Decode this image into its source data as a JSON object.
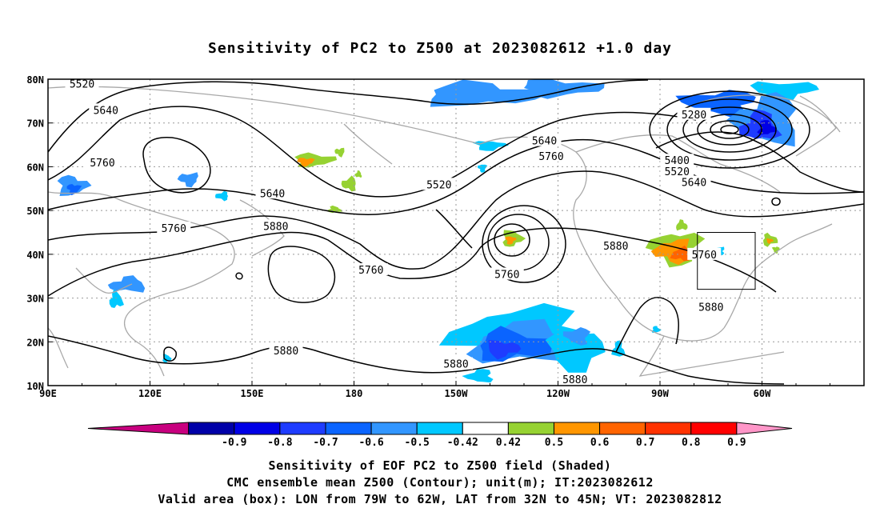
{
  "title": "Sensitivity of PC2 to Z500 at 2023082612 +1.0 day",
  "axes": {
    "lat_labels": [
      "80N",
      "70N",
      "60N",
      "50N",
      "40N",
      "30N",
      "20N",
      "10N"
    ],
    "lon_labels": [
      "90E",
      "120E",
      "150E",
      "180",
      "150W",
      "120W",
      "90W",
      "60W"
    ]
  },
  "contour_labels": [
    {
      "text": "5520",
      "lon": 100,
      "lat": 79
    },
    {
      "text": "5640",
      "lon": 107,
      "lat": 73
    },
    {
      "text": "5760",
      "lon": 106,
      "lat": 61
    },
    {
      "text": "5640",
      "lon": 156,
      "lat": 54
    },
    {
      "text": "5760",
      "lon": 127,
      "lat": 46
    },
    {
      "text": "5880",
      "lon": 157,
      "lat": 46.5
    },
    {
      "text": "5760",
      "lon": 185,
      "lat": 36.5
    },
    {
      "text": "5520",
      "lon": 205,
      "lat": 56
    },
    {
      "text": "5640",
      "lon": 236,
      "lat": 66
    },
    {
      "text": "5760",
      "lon": 238,
      "lat": 62.5
    },
    {
      "text": "5760",
      "lon": 225,
      "lat": 35.5
    },
    {
      "text": "5880",
      "lon": 257,
      "lat": 42
    },
    {
      "text": "5280",
      "lon": 280,
      "lat": 72
    },
    {
      "text": "5400",
      "lon": 275,
      "lat": 61.5
    },
    {
      "text": "5520",
      "lon": 275,
      "lat": 59
    },
    {
      "text": "5640",
      "lon": 280,
      "lat": 56.5
    },
    {
      "text": "5760",
      "lon": 283,
      "lat": 40
    },
    {
      "text": "5880",
      "lon": 285,
      "lat": 28
    },
    {
      "text": "5880",
      "lon": 160,
      "lat": 18
    },
    {
      "text": "5880",
      "lon": 210,
      "lat": 15
    },
    {
      "text": "5880",
      "lon": 245,
      "lat": 11.5
    }
  ],
  "valid_box": {
    "lon_min": 281,
    "lon_max": 298,
    "lat_min": 32,
    "lat_max": 45
  },
  "colorbar": {
    "labels": [
      "-0.9",
      "-0.8",
      "-0.7",
      "-0.6",
      "-0.5",
      "-0.42",
      "0.42",
      "0.5",
      "0.6",
      "0.7",
      "0.8",
      "0.9"
    ],
    "colors": [
      "#c8007f",
      "#0000a8",
      "#0000e6",
      "#1e3cff",
      "#0a64ff",
      "#3296ff",
      "#00c8ff",
      "#ffffff",
      "#96d232",
      "#ff9600",
      "#ff6400",
      "#ff3200",
      "#ff0000",
      "#ff96c8"
    ]
  },
  "footer": {
    "line1": "Sensitivity of EOF PC2 to Z500 field (Shaded)",
    "line2": "CMC ensemble mean Z500 (Contour); unit(m); IT:2023082612",
    "line3": "Valid area (box): LON from 79W to 62W, LAT from 32N to 45N; VT: 2023082812"
  }
}
